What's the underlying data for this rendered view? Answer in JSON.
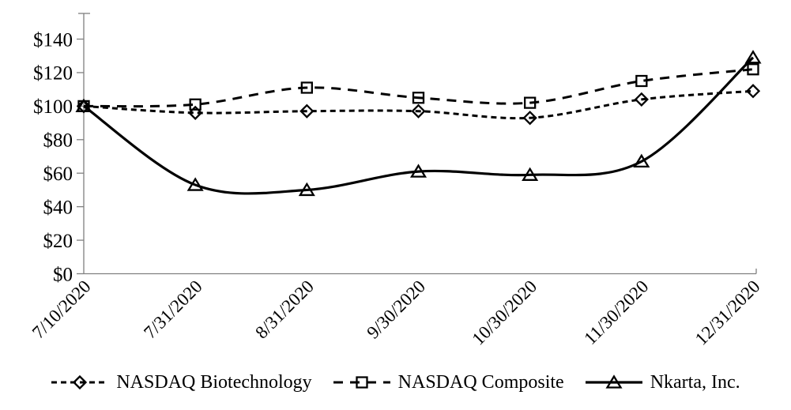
{
  "chart_data": {
    "type": "line",
    "title": "",
    "x_categories": [
      "7/10/2020",
      "7/31/2020",
      "8/31/2020",
      "9/30/2020",
      "10/30/2020",
      "11/30/2020",
      "12/31/2020"
    ],
    "y_axis": {
      "min": 0,
      "max": 140,
      "step": 20,
      "tick_labels": [
        "$0",
        "$20",
        "$40",
        "$60",
        "$80",
        "$100",
        "$120",
        "$140"
      ]
    },
    "series": [
      {
        "name": "NASDAQ Biotechnology",
        "marker": "diamond",
        "line_style": "dash-fine",
        "color": "#000000",
        "values": [
          100,
          96,
          97,
          97,
          93,
          104,
          109
        ]
      },
      {
        "name": "NASDAQ Composite",
        "marker": "square",
        "line_style": "dash-long",
        "color": "#000000",
        "values": [
          100,
          101,
          111,
          105,
          102,
          115,
          122
        ]
      },
      {
        "name": "Nkarta, Inc.",
        "marker": "triangle",
        "line_style": "solid",
        "color": "#000000",
        "values": [
          100,
          53,
          50,
          61,
          59,
          67,
          129
        ]
      }
    ],
    "legend_position": "bottom",
    "grid": false,
    "smooth_lines": true,
    "background": "#ffffff",
    "axis_color": "#808080",
    "text_color": "#000000"
  }
}
